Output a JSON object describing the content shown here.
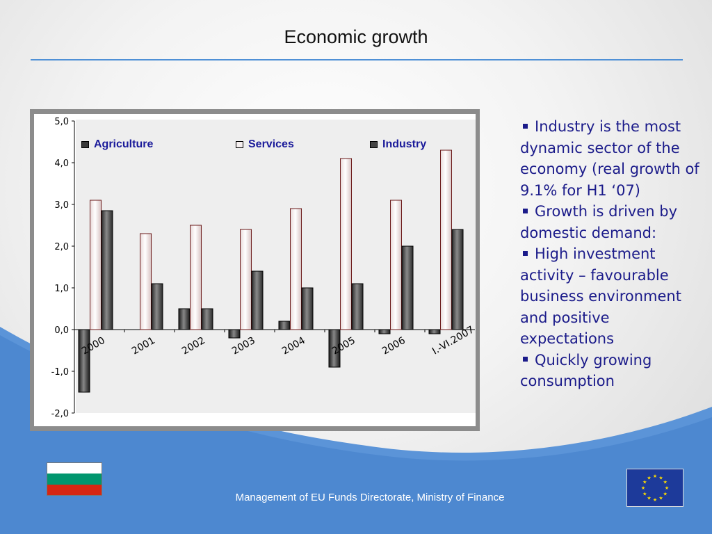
{
  "slide": {
    "title": "Economic growth",
    "footer": "Management of EU Funds Directorate, Ministry of Finance"
  },
  "bullets": [
    "Industry is the most dynamic sector of the economy (real growth of 9.1% for H1 ‘07)",
    "Growth is driven by domestic demand:",
    "High investment activity – favourable business environment and positive expectations",
    "Quickly growing consumption"
  ],
  "colors": {
    "accent_blue": "#4f90d6",
    "bullet_text": "#1b1b8a",
    "legend_text": "#1a1a9a",
    "agriculture": "#3a3a3a",
    "services": "#f6f0f0",
    "industry": "#454545",
    "bulgaria_white": "#ffffff",
    "bulgaria_green": "#00966e",
    "bulgaria_red": "#d62612",
    "eu_blue": "#1d3a9a",
    "eu_star": "#ffdd00"
  },
  "chart_data": {
    "type": "bar",
    "title": "",
    "xlabel": "",
    "ylabel": "",
    "categories": [
      "2000",
      "2001",
      "2002",
      "2003",
      "2004",
      "2005",
      "2006",
      "I.-VI.2007"
    ],
    "series": [
      {
        "name": "Agriculture",
        "values": [
          -1.5,
          0.0,
          0.5,
          -0.2,
          0.2,
          -0.9,
          -0.1,
          -0.1
        ]
      },
      {
        "name": "Services",
        "values": [
          3.1,
          2.3,
          2.5,
          2.4,
          2.9,
          4.1,
          3.1,
          4.3
        ]
      },
      {
        "name": "Industry",
        "values": [
          2.85,
          1.1,
          0.5,
          1.4,
          1.0,
          1.1,
          2.0,
          2.4
        ]
      }
    ],
    "ylim": [
      -2.0,
      5.0
    ],
    "yticks": [
      "-2,0",
      "-1,0",
      "0,0",
      "1,0",
      "2,0",
      "3,0",
      "4,0",
      "5,0"
    ],
    "legend_position": "top",
    "grid": false
  }
}
